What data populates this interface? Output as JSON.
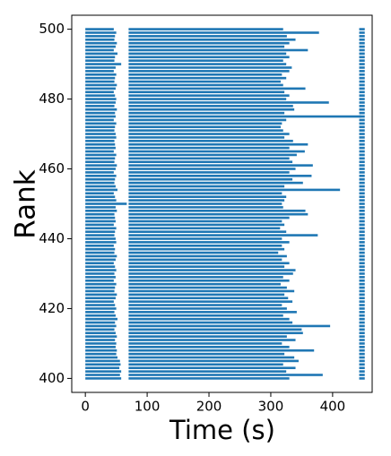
{
  "chart_data": {
    "type": "broken_barh",
    "xlabel": "Time (s)",
    "ylabel": "Rank",
    "color": "#1f77b4",
    "xlim": [
      -22,
      464
    ],
    "xticks": [
      0,
      100,
      200,
      300,
      400
    ],
    "ylim": [
      396,
      504
    ],
    "yticks": [
      400,
      420,
      440,
      460,
      480,
      500
    ],
    "ranks": [
      400,
      401,
      402,
      403,
      404,
      405,
      406,
      407,
      408,
      409,
      410,
      411,
      412,
      413,
      414,
      415,
      416,
      417,
      418,
      419,
      420,
      421,
      422,
      423,
      424,
      425,
      426,
      427,
      428,
      429,
      430,
      431,
      432,
      433,
      434,
      435,
      436,
      437,
      438,
      439,
      440,
      441,
      442,
      443,
      444,
      445,
      446,
      447,
      448,
      449,
      450,
      451,
      452,
      453,
      454,
      455,
      456,
      457,
      458,
      459,
      460,
      461,
      462,
      463,
      464,
      465,
      466,
      467,
      468,
      469,
      470,
      471,
      472,
      473,
      474,
      475,
      476,
      477,
      478,
      479,
      480,
      481,
      482,
      483,
      484,
      485,
      486,
      487,
      488,
      489,
      490,
      491,
      492,
      493,
      494,
      495,
      496,
      497,
      498,
      499,
      500
    ],
    "segments": [
      {
        "start": [
          0,
          0,
          0,
          0,
          0,
          0,
          0,
          0,
          0,
          0,
          0,
          0,
          0,
          0,
          0,
          0,
          0,
          0,
          0,
          0,
          0,
          0,
          0,
          0,
          0,
          0,
          0,
          0,
          0,
          0,
          0,
          0,
          0,
          0,
          0,
          0,
          0,
          0,
          0,
          0,
          0,
          0,
          0,
          0,
          0,
          0,
          0,
          0,
          0,
          0,
          0,
          0,
          0,
          0,
          0,
          0,
          0,
          0,
          0,
          0,
          0,
          0,
          0,
          0,
          0,
          0,
          0,
          0,
          0,
          0,
          0,
          0,
          0,
          0,
          0,
          0,
          0,
          0,
          0,
          0,
          0,
          0,
          0,
          0,
          0,
          0,
          0,
          0,
          0,
          0,
          0,
          0,
          0,
          0,
          0,
          0,
          0,
          0,
          0,
          0,
          0
        ],
        "end": [
          58,
          56,
          58,
          55,
          57,
          56,
          52,
          50,
          51,
          49,
          50,
          48,
          51,
          49,
          47,
          50,
          48,
          52,
          49,
          47,
          50,
          48,
          46,
          49,
          51,
          47,
          48,
          50,
          46,
          49,
          47,
          50,
          48,
          46,
          49,
          51,
          47,
          48,
          46,
          50,
          49,
          47,
          48,
          50,
          46,
          49,
          48,
          47,
          51,
          49,
          67,
          50,
          48,
          46,
          52,
          49,
          47,
          48,
          50,
          46,
          49,
          51,
          47,
          48,
          50,
          46,
          49,
          48,
          47,
          50,
          49,
          47,
          48,
          50,
          46,
          49,
          48,
          51,
          47,
          49,
          50,
          48,
          46,
          49,
          51,
          47,
          48,
          50,
          46,
          49,
          58,
          47,
          48,
          52,
          46,
          49,
          51,
          47,
          48,
          50,
          46
        ]
      },
      {
        "start": [
          70,
          70,
          70,
          70,
          70,
          70,
          70,
          70,
          70,
          70,
          70,
          70,
          70,
          70,
          70,
          70,
          70,
          70,
          70,
          70,
          70,
          70,
          70,
          70,
          70,
          70,
          70,
          70,
          70,
          70,
          70,
          70,
          70,
          70,
          70,
          70,
          70,
          70,
          70,
          70,
          70,
          70,
          70,
          70,
          70,
          70,
          70,
          70,
          70,
          70,
          70,
          70,
          70,
          70,
          70,
          70,
          70,
          70,
          70,
          70,
          70,
          70,
          70,
          70,
          70,
          70,
          70,
          70,
          70,
          70,
          70,
          70,
          70,
          70,
          70,
          70,
          70,
          70,
          70,
          70,
          70,
          70,
          70,
          70,
          70,
          70,
          70,
          70,
          70,
          70,
          70,
          70,
          70,
          70,
          70,
          70,
          70,
          70,
          70,
          70,
          70
        ],
        "end": [
          330,
          384,
          325,
          340,
          320,
          345,
          338,
          322,
          370,
          330,
          318,
          340,
          326,
          352,
          350,
          396,
          335,
          330,
          320,
          342,
          326,
          318,
          335,
          328,
          322,
          338,
          326,
          316,
          330,
          320,
          336,
          340,
          322,
          330,
          318,
          326,
          312,
          322,
          318,
          330,
          318,
          376,
          325,
          315,
          322,
          318,
          330,
          360,
          356,
          320,
          318,
          322,
          325,
          318,
          412,
          322,
          352,
          335,
          366,
          330,
          340,
          368,
          335,
          330,
          342,
          355,
          330,
          360,
          336,
          322,
          330,
          320,
          316,
          318,
          325,
          446,
          322,
          338,
          336,
          394,
          325,
          330,
          322,
          356,
          320,
          316,
          325,
          318,
          330,
          334,
          325,
          320,
          330,
          325,
          360,
          322,
          330,
          340,
          326,
          378,
          320
        ]
      },
      {
        "start": [
          443,
          443,
          443,
          443,
          443,
          443,
          443,
          443,
          443,
          443,
          443,
          443,
          443,
          443,
          443,
          443,
          443,
          443,
          443,
          443,
          443,
          443,
          443,
          443,
          443,
          443,
          443,
          443,
          443,
          443,
          443,
          443,
          443,
          443,
          443,
          443,
          443,
          443,
          443,
          443,
          443,
          443,
          443,
          443,
          443,
          443,
          443,
          443,
          443,
          443,
          443,
          443,
          443,
          443,
          443,
          443,
          443,
          443,
          443,
          443,
          443,
          443,
          443,
          443,
          443,
          443,
          443,
          443,
          443,
          443,
          443,
          443,
          443,
          443,
          443,
          443,
          443,
          443,
          443,
          443,
          443,
          443,
          443,
          443,
          443,
          443,
          443,
          443,
          443,
          443,
          443,
          443,
          443,
          443,
          443,
          443,
          443,
          443,
          443,
          443,
          443
        ],
        "end": [
          452,
          452,
          452,
          452,
          452,
          452,
          452,
          452,
          452,
          452,
          452,
          452,
          452,
          452,
          452,
          452,
          452,
          452,
          452,
          452,
          452,
          452,
          452,
          452,
          452,
          452,
          452,
          452,
          452,
          452,
          452,
          452,
          452,
          452,
          452,
          452,
          452,
          452,
          452,
          452,
          452,
          452,
          452,
          452,
          452,
          452,
          452,
          452,
          452,
          452,
          452,
          452,
          452,
          452,
          452,
          452,
          452,
          452,
          452,
          452,
          452,
          452,
          452,
          452,
          452,
          452,
          452,
          452,
          452,
          452,
          452,
          452,
          452,
          452,
          452,
          452,
          452,
          452,
          452,
          452,
          452,
          452,
          452,
          452,
          452,
          452,
          452,
          452,
          452,
          452,
          452,
          452,
          452,
          452,
          452,
          452,
          452,
          452,
          452,
          452,
          452
        ]
      }
    ]
  }
}
